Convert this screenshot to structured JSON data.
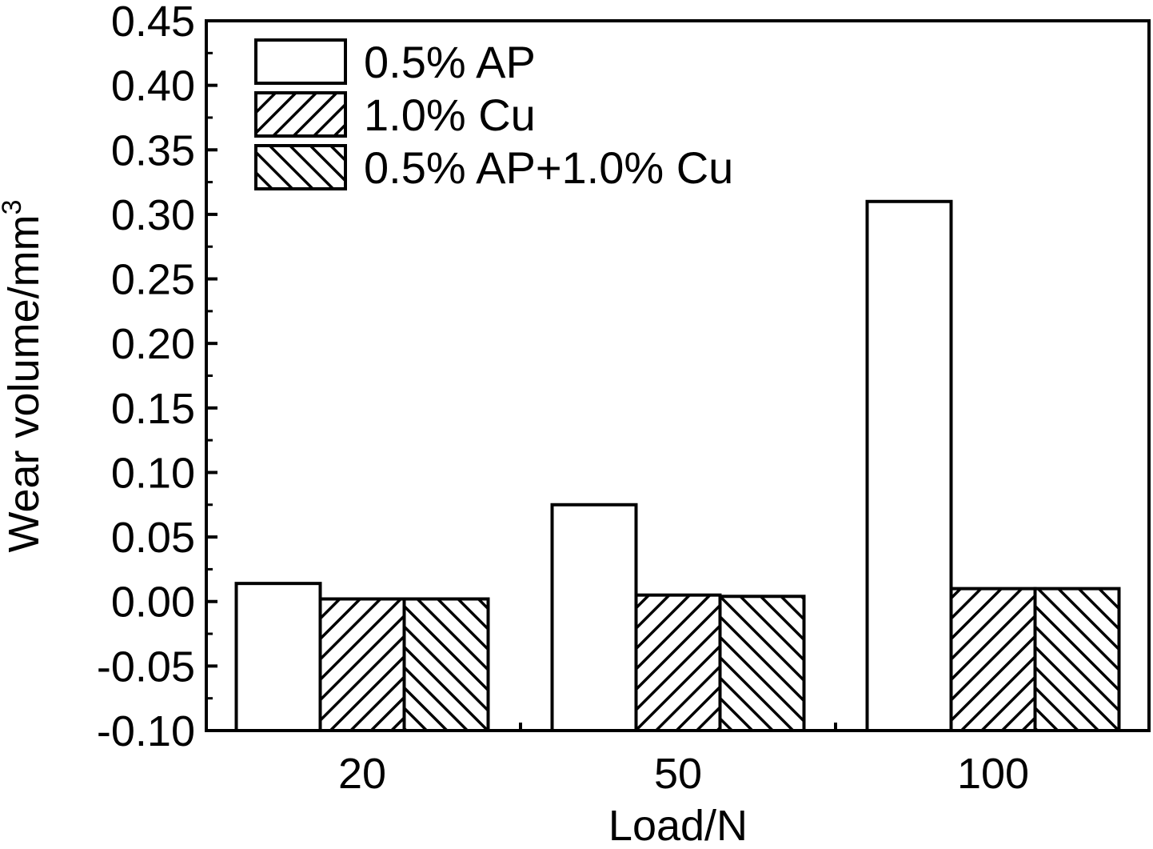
{
  "chart_data": {
    "type": "bar",
    "title": "",
    "xlabel": "Load/N",
    "ylabel": "Wear volume/mm",
    "ylabel_superscript": "3",
    "categories": [
      "20",
      "50",
      "100"
    ],
    "ylim": [
      -0.1,
      0.45
    ],
    "yticks": [
      "0.45",
      "0.40",
      "0.35",
      "0.30",
      "0.25",
      "0.20",
      "0.15",
      "0.10",
      "0.05",
      "0.00",
      "-0.05",
      "-0.10"
    ],
    "grid": false,
    "legend_position": "top-left",
    "series": [
      {
        "name": "0.5% AP",
        "pattern": "none",
        "values": [
          0.014,
          0.075,
          0.31
        ]
      },
      {
        "name": "1.0% Cu",
        "pattern": "diagonal-up",
        "values": [
          0.002,
          0.005,
          0.01
        ]
      },
      {
        "name": "0.5% AP+1.0% Cu",
        "pattern": "diagonal-down",
        "values": [
          0.002,
          0.004,
          0.01
        ]
      }
    ],
    "colors": {
      "fill": "#ffffff",
      "stroke": "#000000"
    }
  }
}
